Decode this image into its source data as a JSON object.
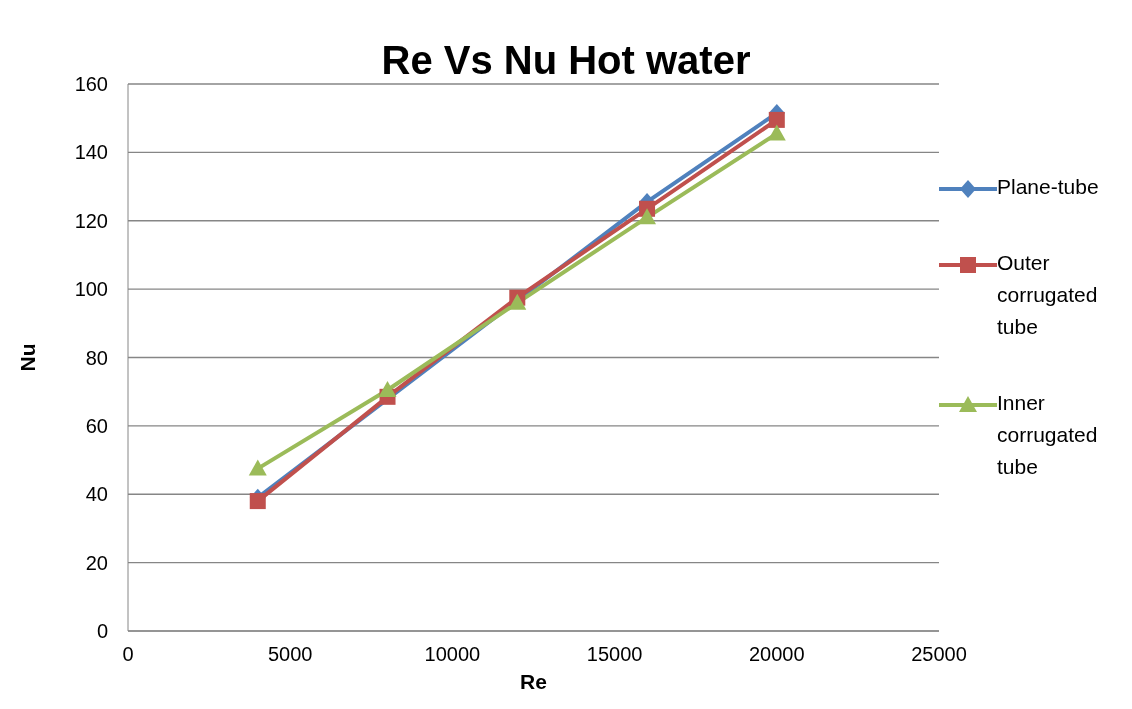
{
  "chart_data": {
    "type": "line",
    "title": "Re  Vs Nu Hot water",
    "xlabel": "Re",
    "ylabel": "Nu",
    "x": [
      4000,
      8000,
      12000,
      16000,
      20000
    ],
    "xlim": [
      0,
      25000
    ],
    "xticks": [
      0,
      5000,
      10000,
      15000,
      20000,
      25000
    ],
    "ylim": [
      0,
      160
    ],
    "yticks": [
      0,
      20,
      40,
      60,
      80,
      100,
      120,
      140,
      160
    ],
    "grid": "y",
    "legend": "right",
    "series": [
      {
        "name": "Plane-tube",
        "color": "#4f81bd",
        "marker": "diamond",
        "values": [
          39,
          null,
          null,
          125.5,
          151.5
        ]
      },
      {
        "name": "Outer corrugated tube",
        "color": "#c0504d",
        "marker": "square",
        "values": [
          38,
          68.5,
          97.5,
          123.5,
          149.5
        ]
      },
      {
        "name": "Inner corrugated tube",
        "color": "#9bbb59",
        "marker": "triangle",
        "values": [
          47.5,
          70.5,
          96,
          121,
          145.5
        ]
      }
    ]
  }
}
